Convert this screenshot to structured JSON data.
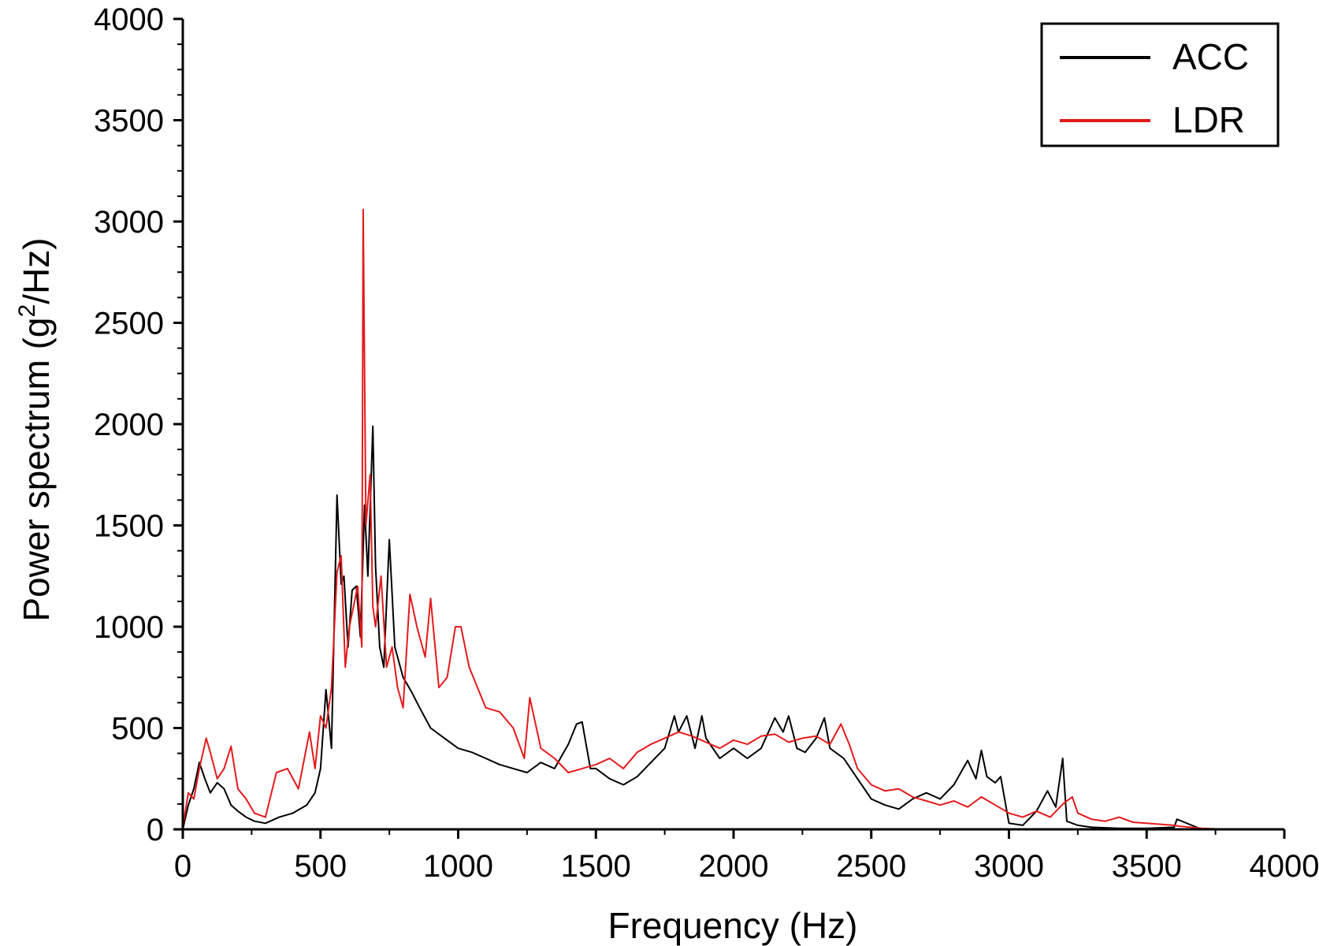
{
  "chart_data": {
    "type": "line",
    "xlabel": "Frequency (Hz)",
    "ylabel_main": "Power spectrum (g",
    "ylabel_sup": "2",
    "ylabel_tail": "/Hz)",
    "xlim": [
      0,
      4000
    ],
    "ylim": [
      0,
      4000
    ],
    "xticks": [
      0,
      500,
      1000,
      1500,
      2000,
      2500,
      3000,
      3500,
      4000
    ],
    "yticks": [
      0,
      500,
      1000,
      1500,
      2000,
      2500,
      3000,
      3500,
      4000
    ],
    "grid": false,
    "legend_position": "top-right",
    "series": [
      {
        "name": "ACC",
        "color": "#000000",
        "x": [
          0,
          20,
          40,
          60,
          80,
          100,
          125,
          150,
          175,
          200,
          230,
          260,
          300,
          350,
          400,
          450,
          480,
          500,
          520,
          540,
          560,
          575,
          585,
          600,
          615,
          630,
          645,
          660,
          672,
          690,
          700,
          715,
          730,
          750,
          770,
          800,
          830,
          860,
          900,
          950,
          1000,
          1050,
          1100,
          1150,
          1200,
          1250,
          1300,
          1350,
          1400,
          1430,
          1450,
          1480,
          1500,
          1550,
          1600,
          1650,
          1700,
          1750,
          1785,
          1800,
          1830,
          1860,
          1885,
          1900,
          1950,
          2000,
          2050,
          2100,
          2150,
          2180,
          2200,
          2230,
          2260,
          2300,
          2330,
          2350,
          2400,
          2450,
          2500,
          2550,
          2600,
          2650,
          2700,
          2750,
          2800,
          2850,
          2880,
          2900,
          2920,
          2950,
          2970,
          3000,
          3050,
          3100,
          3140,
          3170,
          3195,
          3210,
          3250,
          3300,
          3400,
          3500,
          3600,
          3610,
          3700,
          3800,
          3900,
          4000
        ],
        "y": [
          0,
          120,
          200,
          330,
          250,
          180,
          230,
          200,
          120,
          90,
          60,
          40,
          30,
          60,
          80,
          120,
          180,
          300,
          690,
          400,
          1650,
          1210,
          1250,
          900,
          1180,
          1200,
          950,
          1600,
          1250,
          1990,
          1300,
          900,
          800,
          1430,
          900,
          750,
          680,
          600,
          500,
          450,
          400,
          380,
          350,
          320,
          300,
          280,
          330,
          300,
          420,
          520,
          530,
          300,
          300,
          250,
          220,
          260,
          330,
          400,
          560,
          480,
          560,
          400,
          560,
          450,
          350,
          400,
          350,
          400,
          550,
          480,
          560,
          400,
          380,
          450,
          550,
          400,
          350,
          250,
          150,
          120,
          100,
          150,
          180,
          150,
          220,
          340,
          250,
          390,
          260,
          230,
          260,
          30,
          20,
          90,
          190,
          110,
          350,
          40,
          20,
          10,
          5,
          5,
          10,
          50,
          0,
          0,
          0,
          0
        ]
      },
      {
        "name": "LDR",
        "color": "#e41a1c",
        "x": [
          0,
          20,
          40,
          60,
          85,
          100,
          125,
          150,
          175,
          200,
          230,
          260,
          300,
          340,
          380,
          420,
          460,
          480,
          500,
          520,
          540,
          560,
          575,
          590,
          605,
          620,
          635,
          650,
          655,
          665,
          680,
          690,
          700,
          720,
          740,
          760,
          780,
          800,
          825,
          850,
          880,
          900,
          930,
          960,
          990,
          1010,
          1040,
          1070,
          1100,
          1150,
          1200,
          1240,
          1260,
          1300,
          1350,
          1400,
          1450,
          1500,
          1550,
          1600,
          1650,
          1700,
          1750,
          1800,
          1850,
          1900,
          1950,
          2000,
          2050,
          2100,
          2150,
          2200,
          2250,
          2300,
          2350,
          2390,
          2420,
          2450,
          2500,
          2550,
          2600,
          2650,
          2700,
          2750,
          2800,
          2850,
          2900,
          2950,
          3000,
          3050,
          3100,
          3150,
          3200,
          3230,
          3250,
          3300,
          3350,
          3400,
          3450,
          3500,
          3550,
          3600,
          3620,
          3700,
          3800,
          3900,
          4000
        ],
        "y": [
          10,
          180,
          150,
          300,
          450,
          380,
          250,
          300,
          410,
          200,
          150,
          80,
          60,
          280,
          300,
          200,
          480,
          300,
          560,
          500,
          700,
          1270,
          1350,
          800,
          1000,
          1100,
          1200,
          900,
          3060,
          1500,
          1750,
          1100,
          1000,
          1250,
          800,
          900,
          700,
          600,
          1160,
          1000,
          850,
          1140,
          700,
          750,
          1000,
          1000,
          800,
          700,
          600,
          580,
          500,
          350,
          650,
          400,
          350,
          280,
          300,
          320,
          350,
          300,
          380,
          420,
          450,
          480,
          460,
          430,
          400,
          440,
          420,
          460,
          470,
          430,
          450,
          460,
          420,
          520,
          420,
          300,
          220,
          190,
          200,
          160,
          140,
          120,
          140,
          110,
          160,
          120,
          80,
          60,
          90,
          60,
          130,
          160,
          80,
          50,
          40,
          60,
          35,
          30,
          25,
          20,
          15,
          5,
          0,
          0,
          0
        ]
      }
    ]
  }
}
